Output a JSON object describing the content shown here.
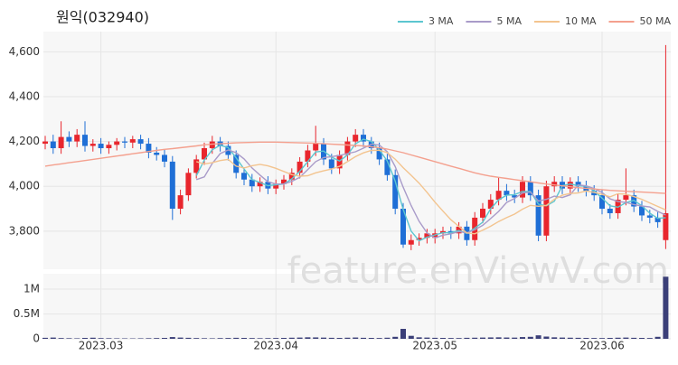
{
  "chart_data": [
    {
      "type": "candlestick",
      "title": "원익(032940)",
      "watermark": "feature.enViewV.com",
      "up_color": "#e8262d",
      "down_color": "#1f6fd6",
      "open": [
        4190,
        4200,
        4170,
        4220,
        4200,
        4230,
        4180,
        4190,
        4170,
        4185,
        4200,
        4195,
        4210,
        4190,
        4150,
        4140,
        4110,
        3900,
        3960,
        4060,
        4120,
        4170,
        4200,
        4180,
        4140,
        4060,
        4030,
        4000,
        4020,
        3990,
        4010,
        4030,
        4060,
        4110,
        4160,
        4190,
        4120,
        4080,
        4140,
        4200,
        4230,
        4200,
        4170,
        4120,
        4050,
        3900,
        3740,
        3760,
        3770,
        3770,
        3790,
        3800,
        3790,
        3820,
        3760,
        3860,
        3900,
        3940,
        3980,
        3960,
        3950,
        4020,
        3960,
        3780,
        4000,
        4020,
        3990,
        4020,
        4000,
        3980,
        3960,
        3900,
        3880,
        3940,
        3960,
        3910,
        3870,
        3860,
        3760
      ],
      "high": [
        4225,
        4230,
        4290,
        4245,
        4255,
        4290,
        4210,
        4215,
        4200,
        4215,
        4220,
        4225,
        4230,
        4215,
        4175,
        4165,
        4135,
        3985,
        4080,
        4140,
        4195,
        4225,
        4220,
        4200,
        4160,
        4085,
        4055,
        4040,
        4045,
        4030,
        4050,
        4080,
        4130,
        4185,
        4270,
        4215,
        4145,
        4160,
        4220,
        4255,
        4255,
        4220,
        4195,
        4145,
        4075,
        3925,
        3785,
        3790,
        3810,
        3810,
        3820,
        3820,
        3840,
        3845,
        3885,
        3925,
        3965,
        4040,
        4010,
        3985,
        4045,
        4045,
        3985,
        4025,
        4045,
        4045,
        4040,
        4045,
        4025,
        4005,
        3985,
        3920,
        3965,
        4080,
        3985,
        3935,
        3895,
        3885,
        4630
      ],
      "low": [
        4165,
        4145,
        4145,
        4175,
        4175,
        4155,
        4155,
        4145,
        4145,
        4160,
        4170,
        4170,
        4165,
        4125,
        4115,
        4085,
        3850,
        3875,
        3935,
        4035,
        4095,
        4145,
        4155,
        4115,
        4035,
        4005,
        3975,
        3975,
        3965,
        3965,
        3985,
        4005,
        4035,
        4085,
        4135,
        4095,
        4055,
        4055,
        4115,
        4175,
        4175,
        4145,
        4095,
        4025,
        3875,
        3725,
        3715,
        3735,
        3745,
        3745,
        3765,
        3765,
        3765,
        3735,
        3735,
        3835,
        3875,
        3915,
        3935,
        3925,
        3925,
        3935,
        3755,
        3755,
        3975,
        3965,
        3965,
        3975,
        3955,
        3935,
        3875,
        3855,
        3855,
        3915,
        3885,
        3845,
        3835,
        3815,
        3720
      ],
      "close": [
        4200,
        4170,
        4220,
        4200,
        4230,
        4180,
        4190,
        4170,
        4185,
        4200,
        4195,
        4210,
        4190,
        4150,
        4140,
        4110,
        3900,
        3960,
        4060,
        4120,
        4170,
        4200,
        4180,
        4140,
        4060,
        4030,
        4000,
        4020,
        3990,
        4010,
        4030,
        4060,
        4110,
        4160,
        4190,
        4120,
        4080,
        4140,
        4200,
        4230,
        4200,
        4170,
        4120,
        4050,
        3900,
        3740,
        3760,
        3770,
        3790,
        3790,
        3800,
        3790,
        3820,
        3760,
        3860,
        3900,
        3940,
        3980,
        3960,
        3950,
        4020,
        3960,
        3780,
        4000,
        4020,
        3990,
        4020,
        4000,
        3980,
        3960,
        3900,
        3880,
        3940,
        3960,
        3910,
        3870,
        3860,
        3840,
        3880
      ],
      "series": [
        {
          "name": "3 MA",
          "color": "#5cc6d0",
          "values": [
            null,
            null,
            null,
            null,
            null,
            null,
            null,
            null,
            null,
            null,
            null,
            null,
            null,
            null,
            null,
            null,
            null,
            null,
            null,
            4047,
            4117,
            4163,
            4183,
            4173,
            4127,
            4077,
            4030,
            4017,
            4003,
            4007,
            4010,
            4033,
            4067,
            4110,
            4153,
            4157,
            4130,
            4113,
            4140,
            4190,
            4210,
            4200,
            4163,
            4113,
            4023,
            3897,
            3800,
            3757,
            3773,
            3783,
            3793,
            3793,
            3803,
            3790,
            3813,
            3840,
            3900,
            3940,
            3960,
            3963,
            3977,
            3977,
            3920,
            3913,
            3933,
            4003,
            4010,
            4003,
            4000,
            3980,
            3947,
            3913,
            3907,
            3927,
            3937,
            3913,
            3880,
            3857,
            3860
          ]
        },
        {
          "name": "5 MA",
          "color": "#a99bc9",
          "values": [
            null,
            null,
            null,
            null,
            null,
            null,
            null,
            null,
            null,
            null,
            null,
            null,
            null,
            null,
            null,
            null,
            null,
            null,
            null,
            4030,
            4042,
            4102,
            4146,
            4162,
            4150,
            4122,
            4082,
            4050,
            4020,
            4010,
            4010,
            4022,
            4040,
            4074,
            4110,
            4128,
            4132,
            4138,
            4146,
            4154,
            4170,
            4188,
            4184,
            4154,
            4088,
            3996,
            3914,
            3844,
            3792,
            3770,
            3782,
            3788,
            3798,
            3792,
            3806,
            3826,
            3856,
            3888,
            3928,
            3946,
            3970,
            3974,
            3934,
            3942,
            3956,
            3950,
            3962,
            4006,
            4002,
            3990,
            3972,
            3944,
            3932,
            3928,
            3918,
            3912,
            3908,
            3888,
            3872
          ]
        },
        {
          "name": "10 MA",
          "color": "#f3c48f",
          "values": [
            null,
            null,
            null,
            null,
            null,
            null,
            null,
            null,
            null,
            null,
            null,
            null,
            null,
            null,
            null,
            null,
            null,
            null,
            null,
            4110,
            4100,
            4105,
            4115,
            4120,
            4090,
            4082,
            4092,
            4098,
            4091,
            4080,
            4066,
            4052,
            4045,
            4047,
            4060,
            4069,
            4077,
            4089,
            4110,
            4132,
            4149,
            4160,
            4161,
            4150,
            4121,
            4083,
            4049,
            4014,
            3973,
            3929,
            3889,
            3851,
            3821,
            3792,
            3788,
            3804,
            3822,
            3843,
            3860,
            3876,
            3898,
            3915,
            3911,
            3915,
            3942,
            3960,
            3968,
            3970,
            3979,
            3973,
            3964,
            3953,
            3967,
            3965,
            3954,
            3942,
            3926,
            3910,
            3895
          ]
        },
        {
          "name": "50 MA",
          "color": "#f4a08e",
          "values": [
            4090,
            4095,
            4100,
            4105,
            4110,
            4115,
            4120,
            4125,
            4130,
            4135,
            4140,
            4145,
            4150,
            4155,
            4160,
            4165,
            4168,
            4172,
            4176,
            4180,
            4185,
            4188,
            4190,
            4192,
            4194,
            4195,
            4196,
            4197,
            4197,
            4197,
            4196,
            4195,
            4194,
            4193,
            4192,
            4190,
            4188,
            4186,
            4184,
            4182,
            4180,
            4176,
            4172,
            4166,
            4158,
            4150,
            4140,
            4130,
            4120,
            4110,
            4100,
            4090,
            4080,
            4070,
            4060,
            4052,
            4045,
            4040,
            4035,
            4030,
            4025,
            4020,
            4015,
            4010,
            4006,
            4002,
            3998,
            3994,
            3991,
            3988,
            3985,
            3982,
            3980,
            3978,
            3976,
            3974,
            3972,
            3970,
            3968
          ]
        }
      ],
      "ylim": [
        3630,
        4690
      ],
      "yticks": [
        {
          "value": 3800,
          "label": "3,800"
        },
        {
          "value": 4000,
          "label": "4,000"
        },
        {
          "value": 4200,
          "label": "4,200"
        },
        {
          "value": 4400,
          "label": "4,400"
        },
        {
          "value": 4600,
          "label": "4,600"
        }
      ],
      "grid": true,
      "legend": "top-right"
    },
    {
      "type": "bar",
      "color": "#3b3f78",
      "categories": [
        null,
        null,
        null,
        null,
        null,
        null,
        null,
        "2023.03",
        null,
        null,
        null,
        null,
        null,
        null,
        null,
        null,
        null,
        null,
        null,
        null,
        null,
        null,
        null,
        null,
        null,
        null,
        null,
        null,
        null,
        "2023.04",
        null,
        null,
        null,
        null,
        null,
        null,
        null,
        null,
        null,
        null,
        null,
        null,
        null,
        null,
        null,
        null,
        null,
        null,
        null,
        "2023.05",
        null,
        null,
        null,
        null,
        null,
        null,
        null,
        null,
        null,
        null,
        null,
        null,
        null,
        null,
        null,
        null,
        null,
        null,
        null,
        null,
        "2023.06",
        null,
        null,
        null,
        null,
        null,
        null,
        null,
        null
      ],
      "values": [
        20000,
        25000,
        15000,
        12000,
        10000,
        18000,
        22000,
        14000,
        12000,
        10000,
        9000,
        8000,
        10000,
        12000,
        15000,
        18000,
        35000,
        25000,
        20000,
        15000,
        12000,
        10000,
        14000,
        16000,
        20000,
        18000,
        15000,
        12000,
        14000,
        16000,
        18000,
        22000,
        25000,
        30000,
        28000,
        24000,
        20000,
        18000,
        22000,
        26000,
        20000,
        18000,
        16000,
        22000,
        40000,
        200000,
        60000,
        30000,
        25000,
        20000,
        18000,
        16000,
        15000,
        20000,
        22000,
        25000,
        28000,
        30000,
        26000,
        24000,
        35000,
        40000,
        70000,
        45000,
        30000,
        25000,
        22000,
        20000,
        18000,
        16000,
        15000,
        18000,
        22000,
        25000,
        20000,
        18000,
        16000,
        40000,
        1250000
      ],
      "ylim": [
        0,
        1310000
      ],
      "yticks": [
        0,
        {
          "value": 500000,
          "label": "0.5M"
        },
        {
          "value": 1000000,
          "label": "1M"
        }
      ],
      "grid": true
    }
  ]
}
